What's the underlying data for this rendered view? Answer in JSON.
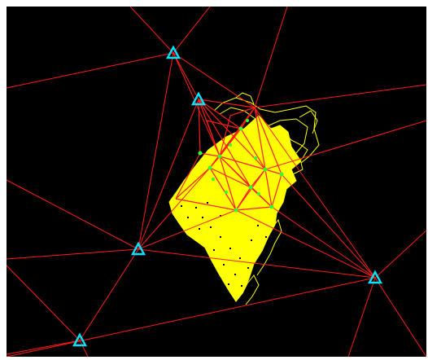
{
  "viewer": {
    "background_color": "#000000",
    "page_color": "#ffffff"
  },
  "colors": {
    "triangulation_edges": "#ff1a1a",
    "survey_contours": "#ffff00",
    "survey_fill": "#ffff00",
    "interior_points": "#33ff33",
    "control_station_marker": "#00e5ff"
  },
  "legend": [],
  "control_stations": [
    {
      "id": "S1",
      "icon": "triangle-marker-icon"
    },
    {
      "id": "S2",
      "icon": "triangle-marker-icon"
    },
    {
      "id": "S3",
      "icon": "triangle-marker-icon"
    },
    {
      "id": "S4",
      "icon": "triangle-marker-icon"
    },
    {
      "id": "S5",
      "icon": "triangle-marker-icon"
    }
  ]
}
